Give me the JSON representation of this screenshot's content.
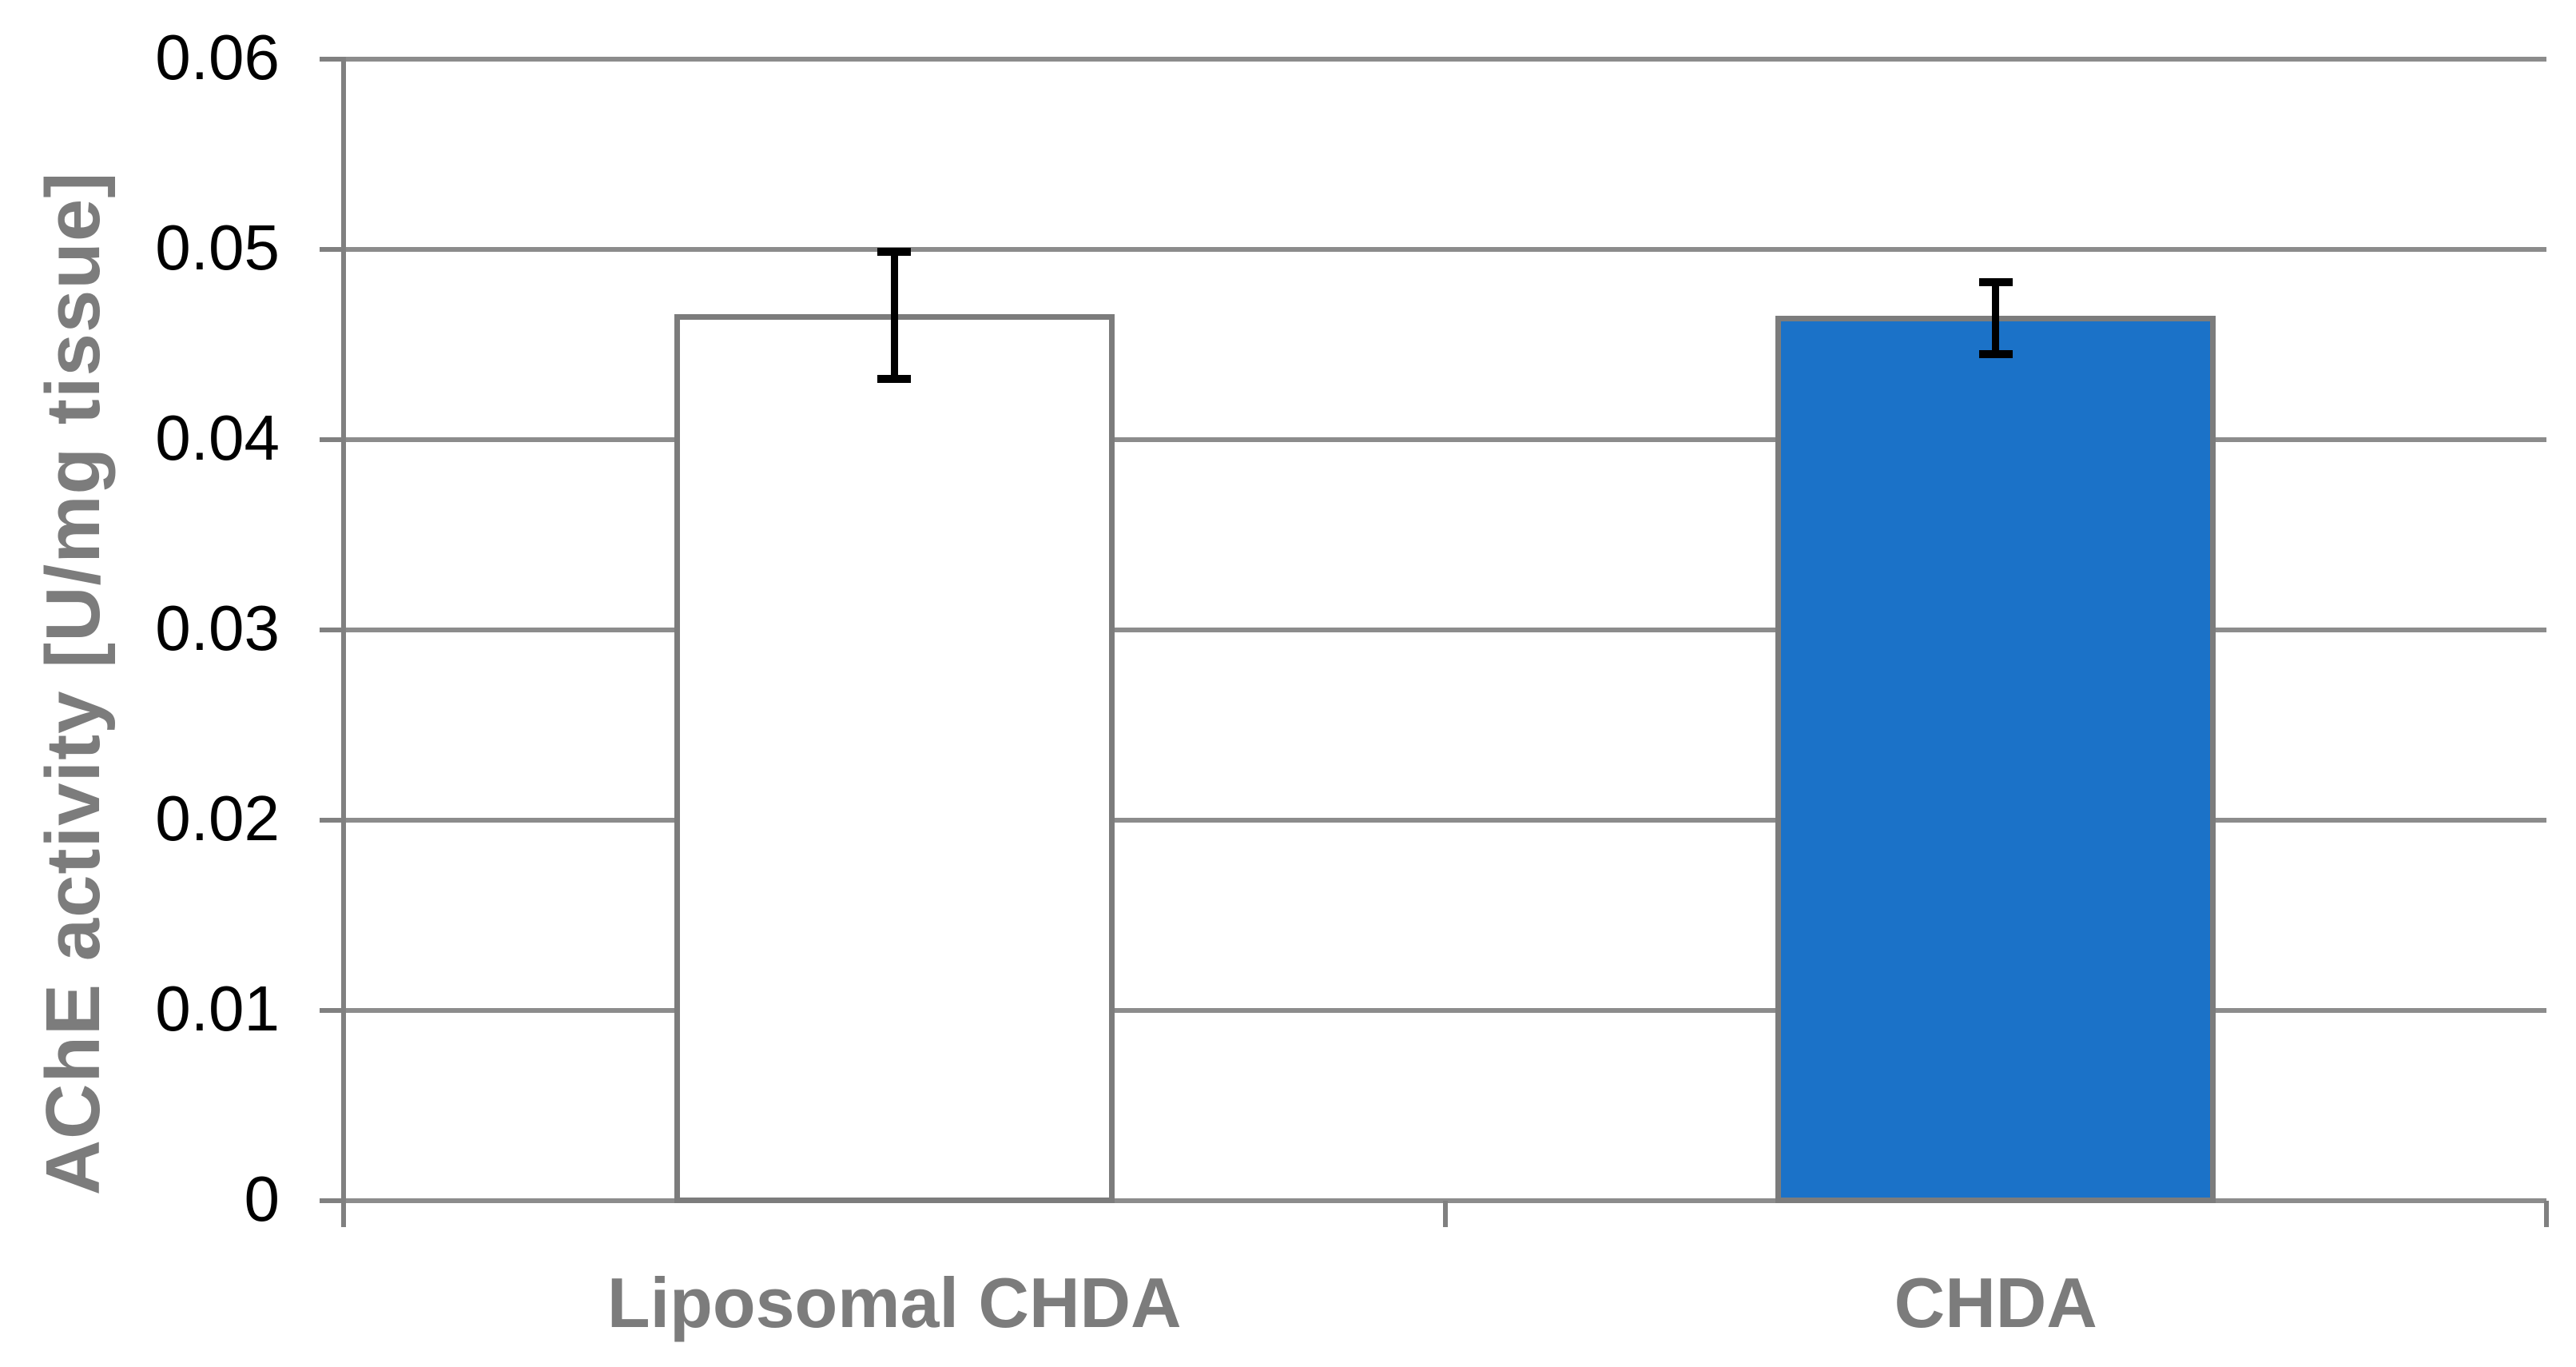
{
  "chart_data": {
    "type": "bar",
    "title": "",
    "categories": [
      "Liposomal CHDA",
      "CHDA"
    ],
    "values": [
      0.0466,
      0.0465
    ],
    "error_plus": [
      0.0035,
      0.002
    ],
    "error_minus": [
      0.0036,
      0.0022
    ],
    "ylabel": "AChE activity [U/mg tissue]",
    "xlabel": "",
    "ylim": [
      0,
      0.06
    ],
    "yticks": [
      0,
      0.01,
      0.02,
      0.03,
      0.04,
      0.05,
      0.06
    ],
    "ytick_labels": [
      "0",
      "0.01",
      "0.02",
      "0.03",
      "0.04",
      "0.05",
      "0.06"
    ],
    "grid": "horizontal-major",
    "legend": "none",
    "bar_fill_colors": [
      "#FFFFFF",
      "#1B72C8"
    ],
    "bar_border_color": "#7C7C7C",
    "gridline_color": "#8C8C8C",
    "axis_color": "#808080",
    "tick_label_color": "#000000",
    "category_label_color": "#7C7C7C",
    "ylabel_color": "#7C7C7C",
    "error_bar_color": "#000000"
  }
}
